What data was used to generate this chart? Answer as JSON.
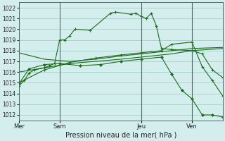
{
  "bg_color": "#d4eeee",
  "grid_color": "#a0c8c8",
  "line_color": "#1a6b1a",
  "title": "Pression niveau de la mer( hPa )",
  "ylim": [
    1011.5,
    1022.5
  ],
  "yticks": [
    1012,
    1013,
    1014,
    1015,
    1016,
    1017,
    1018,
    1019,
    1020,
    1021,
    1022
  ],
  "day_labels": [
    "Mer",
    "Sam",
    "Jeu",
    "Ven"
  ],
  "day_positions": [
    0,
    8,
    24,
    34
  ],
  "xlim": [
    0,
    40
  ],
  "line1_x": [
    0,
    1,
    2,
    3,
    5,
    6,
    7,
    8,
    9,
    10,
    11,
    14,
    18,
    19,
    22,
    23,
    24,
    25,
    26,
    27,
    28,
    30,
    34,
    36,
    38,
    40
  ],
  "line1_y": [
    1014.7,
    1015.2,
    1015.9,
    1016.2,
    1016.4,
    1016.6,
    1016.8,
    1019.0,
    1019.0,
    1019.4,
    1020.0,
    1019.9,
    1021.5,
    1021.6,
    1021.4,
    1021.5,
    1021.2,
    1021.0,
    1021.5,
    1020.3,
    1018.2,
    1018.1,
    1018.0,
    1017.7,
    1016.2,
    1015.5
  ],
  "line2_x": [
    0,
    5,
    10,
    15,
    20,
    24,
    30,
    34,
    40
  ],
  "line2_y": [
    1017.8,
    1017.2,
    1017.0,
    1017.2,
    1017.5,
    1017.7,
    1018.0,
    1018.2,
    1018.3
  ],
  "line3_x": [
    0,
    5,
    10,
    15,
    20,
    24,
    30,
    34,
    40
  ],
  "line3_y": [
    1016.0,
    1016.4,
    1016.8,
    1017.0,
    1017.2,
    1017.4,
    1017.7,
    1018.0,
    1018.2
  ],
  "line4_x": [
    0,
    5,
    10,
    15,
    20,
    24,
    28,
    30,
    34,
    36,
    38,
    40
  ],
  "line4_y": [
    1015.0,
    1016.2,
    1016.9,
    1017.3,
    1017.6,
    1017.8,
    1018.0,
    1018.6,
    1018.8,
    1016.5,
    1015.2,
    1013.8
  ],
  "line5_x": [
    0,
    2,
    5,
    8,
    12,
    16,
    20,
    24,
    28,
    30,
    32,
    34,
    36,
    38,
    40
  ],
  "line5_y": [
    1014.9,
    1016.3,
    1016.7,
    1016.8,
    1016.6,
    1016.7,
    1017.0,
    1017.2,
    1017.4,
    1015.8,
    1014.3,
    1013.5,
    1012.0,
    1012.0,
    1011.8
  ]
}
